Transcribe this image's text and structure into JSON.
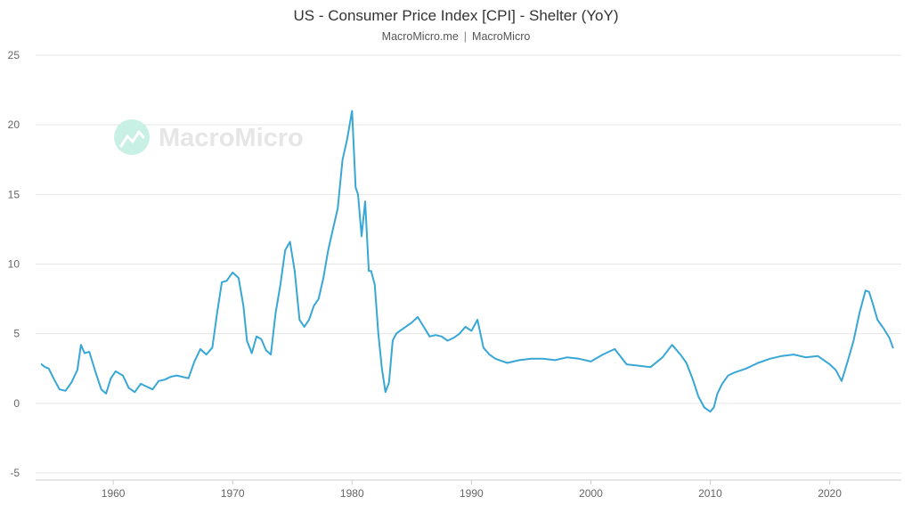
{
  "header": {
    "title": "US - Consumer Price Index [CPI] - Shelter (YoY)",
    "source_left": "MacroMicro.me",
    "separator": "|",
    "source_right": "MacroMicro"
  },
  "watermark": {
    "text": "MacroMicro"
  },
  "colors": {
    "line": "#38a7d6",
    "grid": "#e6e6e6",
    "axis_text": "#666666",
    "watermark": "#c9f0e4"
  },
  "chart_data": {
    "type": "line",
    "title": "US - Consumer Price Index [CPI] - Shelter (YoY)",
    "xlabel": "",
    "ylabel": "",
    "xlim": [
      1953.5,
      2026.0
    ],
    "ylim": [
      -5,
      25
    ],
    "yticks": [
      -5,
      0,
      5,
      10,
      15,
      20,
      25
    ],
    "xticks": [
      1960,
      1970,
      1980,
      1990,
      2000,
      2010,
      2020
    ],
    "grid": true,
    "series": [
      {
        "name": "Shelter (YoY)",
        "x": [
          1954.0,
          1954.3,
          1954.6,
          1955.0,
          1955.5,
          1956.0,
          1956.5,
          1957.0,
          1957.3,
          1957.6,
          1958.0,
          1958.5,
          1959.0,
          1959.4,
          1959.8,
          1960.2,
          1960.8,
          1961.3,
          1961.8,
          1962.3,
          1962.8,
          1963.3,
          1963.8,
          1964.3,
          1964.8,
          1965.3,
          1965.8,
          1966.3,
          1966.8,
          1967.3,
          1967.8,
          1968.3,
          1968.7,
          1969.1,
          1969.5,
          1970.0,
          1970.5,
          1970.9,
          1971.2,
          1971.6,
          1972.0,
          1972.4,
          1972.8,
          1973.2,
          1973.6,
          1974.0,
          1974.4,
          1974.8,
          1975.2,
          1975.6,
          1976.0,
          1976.4,
          1976.8,
          1977.2,
          1977.6,
          1978.0,
          1978.4,
          1978.8,
          1979.2,
          1979.6,
          1980.0,
          1980.3,
          1980.5,
          1980.8,
          1981.1,
          1981.4,
          1981.6,
          1981.9,
          1982.2,
          1982.5,
          1982.8,
          1983.1,
          1983.4,
          1983.7,
          1984.0,
          1984.5,
          1985.0,
          1985.5,
          1986.0,
          1986.5,
          1987.0,
          1987.5,
          1988.0,
          1988.5,
          1989.0,
          1989.5,
          1990.0,
          1990.5,
          1991.0,
          1991.5,
          1992.0,
          1993.0,
          1994.0,
          1995.0,
          1996.0,
          1997.0,
          1998.0,
          1999.0,
          2000.0,
          2001.0,
          2002.0,
          2003.0,
          2004.0,
          2005.0,
          2006.0,
          2006.8,
          2007.5,
          2008.0,
          2008.5,
          2009.0,
          2009.5,
          2010.0,
          2010.3,
          2010.6,
          2011.0,
          2011.5,
          2012.0,
          2013.0,
          2014.0,
          2015.0,
          2016.0,
          2017.0,
          2018.0,
          2019.0,
          2020.0,
          2020.5,
          2021.0,
          2021.5,
          2022.0,
          2022.5,
          2023.0,
          2023.3,
          2023.6,
          2024.0,
          2024.5,
          2025.0,
          2025.3
        ],
        "values": [
          2.8,
          2.6,
          2.5,
          1.8,
          1.0,
          0.9,
          1.5,
          2.4,
          4.2,
          3.6,
          3.7,
          2.3,
          1.0,
          0.7,
          1.8,
          2.3,
          2.0,
          1.1,
          0.8,
          1.4,
          1.2,
          1.0,
          1.6,
          1.7,
          1.9,
          2.0,
          1.9,
          1.8,
          3.0,
          3.9,
          3.5,
          4.0,
          6.5,
          8.7,
          8.8,
          9.4,
          9.0,
          7.0,
          4.5,
          3.6,
          4.8,
          4.6,
          3.8,
          3.5,
          6.5,
          8.5,
          11.0,
          11.6,
          9.5,
          6.0,
          5.5,
          6.0,
          7.0,
          7.5,
          9.0,
          11.0,
          12.5,
          14.0,
          17.5,
          19.0,
          21.0,
          15.5,
          15.0,
          12.0,
          14.5,
          9.5,
          9.5,
          8.5,
          5.0,
          2.5,
          0.8,
          1.5,
          4.5,
          5.0,
          5.2,
          5.5,
          5.8,
          6.2,
          5.5,
          4.8,
          4.9,
          4.8,
          4.5,
          4.7,
          5.0,
          5.5,
          5.2,
          6.0,
          4.0,
          3.5,
          3.2,
          2.9,
          3.1,
          3.2,
          3.2,
          3.1,
          3.3,
          3.2,
          3.0,
          3.5,
          3.9,
          2.8,
          2.7,
          2.6,
          3.3,
          4.2,
          3.5,
          2.9,
          1.8,
          0.5,
          -0.3,
          -0.6,
          -0.3,
          0.7,
          1.4,
          2.0,
          2.2,
          2.5,
          2.9,
          3.2,
          3.4,
          3.5,
          3.3,
          3.4,
          2.8,
          2.4,
          1.6,
          3.0,
          4.5,
          6.5,
          8.1,
          8.0,
          7.2,
          6.0,
          5.4,
          4.7,
          4.0
        ]
      }
    ]
  }
}
